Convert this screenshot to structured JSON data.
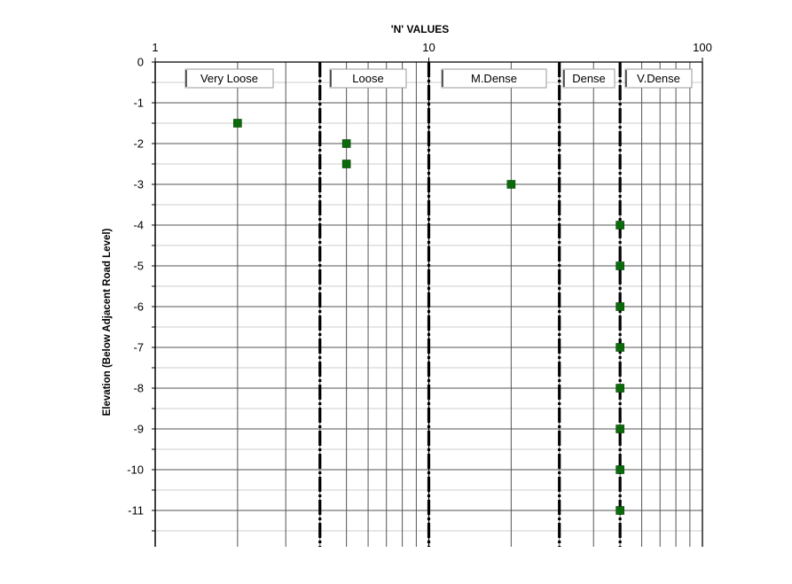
{
  "chart_data": {
    "type": "scatter",
    "title": "'N' VALUES",
    "ylabel": "Elevation  (Below Adjacent Road Level)",
    "xscale": "log",
    "xlim": [
      1,
      100
    ],
    "ylim": [
      -11.9,
      0
    ],
    "xaxis_position": "top",
    "grid": true,
    "x_tick_labels": [
      "1",
      "10",
      "100"
    ],
    "x_tick_values": [
      1,
      10,
      100
    ],
    "y_tick_labels": [
      "0",
      "-1",
      "-2",
      "-3",
      "-4",
      "-5",
      "-6",
      "-7",
      "-8",
      "-9",
      "-10",
      "-11"
    ],
    "y_tick_values": [
      0,
      -1,
      -2,
      -3,
      -4,
      -5,
      -6,
      -7,
      -8,
      -9,
      -10,
      -11
    ],
    "marker_color": "#0b6b0b",
    "boundary_color": "#000000",
    "density_boundaries": [
      4,
      10,
      30,
      50
    ],
    "zones": [
      {
        "label": "Very Loose",
        "x_from": 1,
        "x_to": 4
      },
      {
        "label": "Loose",
        "x_from": 4,
        "x_to": 10
      },
      {
        "label": "M.Dense",
        "x_from": 10,
        "x_to": 30
      },
      {
        "label": "Dense",
        "x_from": 30,
        "x_to": 50
      },
      {
        "label": "V.Dense",
        "x_from": 50,
        "x_to": 100
      }
    ],
    "points": [
      {
        "x": 2,
        "y": -1.5
      },
      {
        "x": 5,
        "y": -2
      },
      {
        "x": 5,
        "y": -2.5
      },
      {
        "x": 20,
        "y": -3
      },
      {
        "x": 50,
        "y": -4
      },
      {
        "x": 50,
        "y": -5
      },
      {
        "x": 50,
        "y": -6
      },
      {
        "x": 50,
        "y": -7
      },
      {
        "x": 50,
        "y": -8
      },
      {
        "x": 50,
        "y": -9
      },
      {
        "x": 50,
        "y": -10
      },
      {
        "x": 50,
        "y": -11
      }
    ]
  }
}
